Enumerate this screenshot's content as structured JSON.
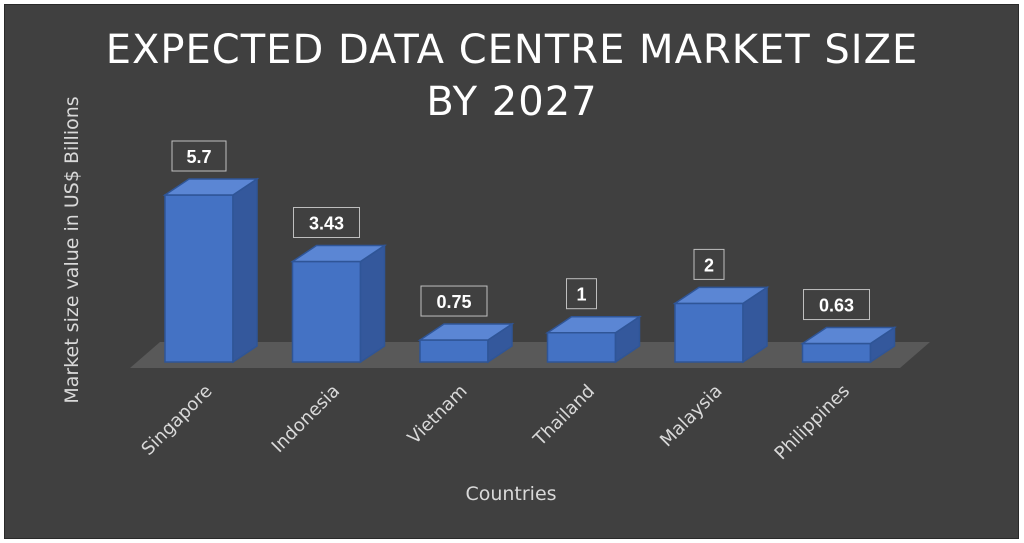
{
  "chart_data": {
    "type": "bar",
    "title_line1": "EXPECTED DATA CENTRE MARKET SIZE",
    "title_line2": "BY 2027",
    "xlabel": "Countries",
    "ylabel": "Market size value in US$ Billions",
    "categories": [
      "Singapore",
      "Indonesia",
      "Vietnam",
      "Thailand",
      "Malaysia",
      "Philippines"
    ],
    "values": [
      5.7,
      3.43,
      0.75,
      1,
      2,
      0.63
    ],
    "value_labels": [
      "5.7",
      "3.43",
      "0.75",
      "1",
      "2",
      "0.63"
    ],
    "ylim": [
      0,
      5.7
    ],
    "grid": false,
    "legend": "none",
    "bar_color": "#4472C4",
    "background": "#404040"
  }
}
